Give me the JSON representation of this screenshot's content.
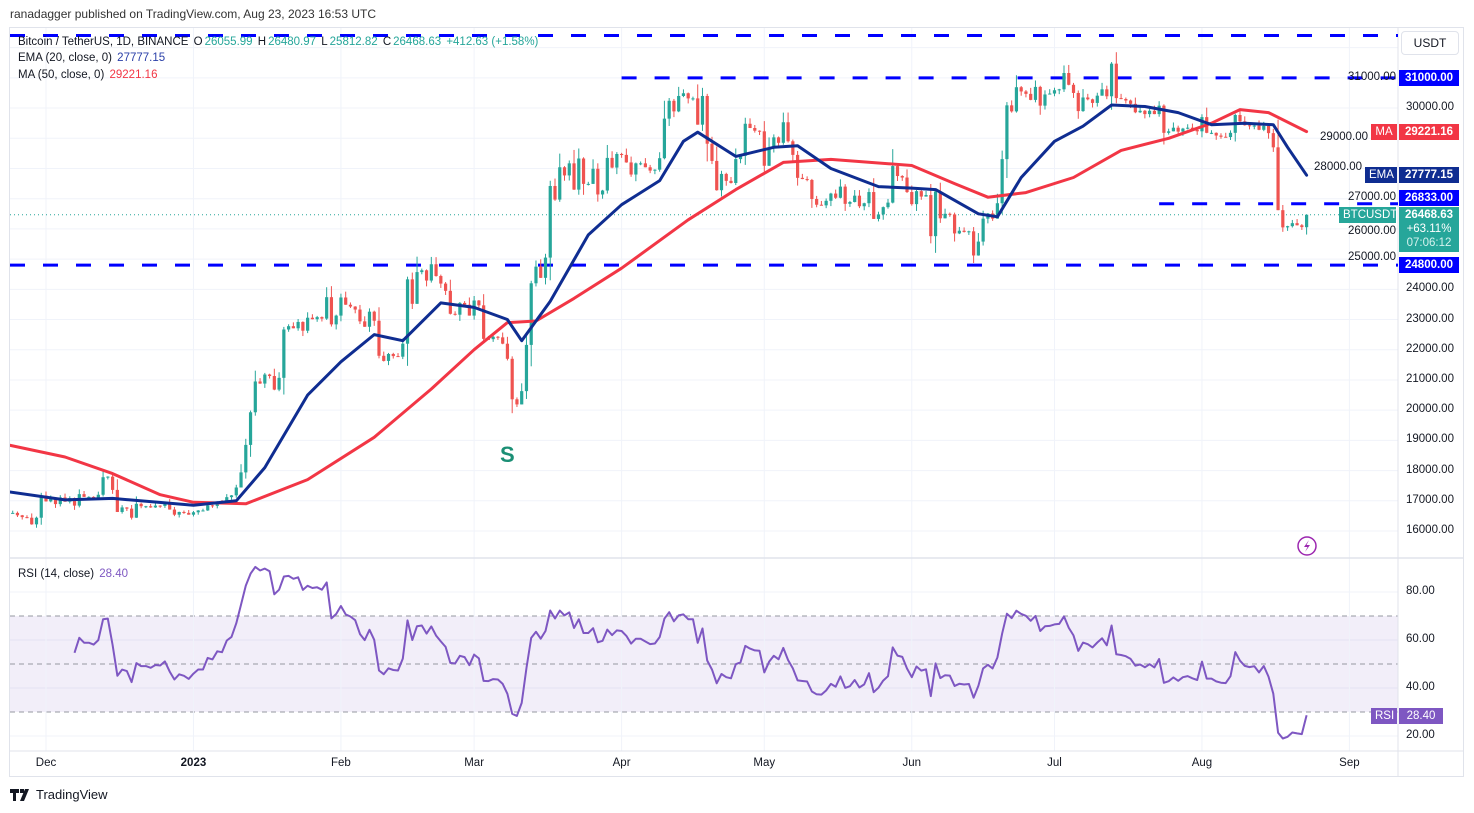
{
  "published": "ranadagger published on TradingView.com, Aug 23, 2023 16:53 UTC",
  "legend": {
    "symbol": "Bitcoin / TetherUS, 1D, BINANCE",
    "open_label": "O",
    "open": "26055.99",
    "high_label": "H",
    "high": "26480.97",
    "low_label": "L",
    "low": "25812.82",
    "close_label": "C",
    "close": "26468.63",
    "change": "+412.63 (+1.58%)",
    "ema_label": "EMA (20, close, 0)",
    "ema_value": "27777.15",
    "ma_label": "MA (50, close, 0)",
    "ma_value": "29221.16",
    "rsi_label": "RSI (14, close)",
    "rsi_value": "28.40"
  },
  "currency_button": "USDT",
  "price_axis_ticks": [
    "31000.00",
    "30000.00",
    "29000.00",
    "28000.00",
    "27000.00",
    "26000.00",
    "25000.00",
    "24000.00",
    "23000.00",
    "22000.00",
    "21000.00",
    "20000.00",
    "19000.00",
    "18000.00",
    "17000.00",
    "16000.00"
  ],
  "rsi_axis_ticks": [
    "80.00",
    "60.00",
    "40.00",
    "20.00"
  ],
  "time_axis_ticks": [
    {
      "label": "Dec",
      "date": "2022-12-01"
    },
    {
      "label": "2023",
      "date": "2023-01-01",
      "bold": true
    },
    {
      "label": "Feb",
      "date": "2023-02-01"
    },
    {
      "label": "Mar",
      "date": "2023-03-01"
    },
    {
      "label": "Apr",
      "date": "2023-04-01"
    },
    {
      "label": "May",
      "date": "2023-05-01"
    },
    {
      "label": "Jun",
      "date": "2023-06-01"
    },
    {
      "label": "Jul",
      "date": "2023-07-01"
    },
    {
      "label": "Aug",
      "date": "2023-08-01"
    },
    {
      "label": "Sep",
      "date": "2023-09-01"
    }
  ],
  "tags": {
    "level_31000": "31000.00",
    "ma_name": "MA",
    "ma_value": "29221.16",
    "ema_name": "EMA",
    "ema_value": "27777.15",
    "level_26833": "26833.00",
    "symbol": "BTCUSDT",
    "price": "26468.63",
    "change_pct": "+63.11%",
    "countdown": "07:06:12",
    "level_24800": "24800.00",
    "rsi_name": "RSI",
    "rsi_value": "28.40"
  },
  "annotation_s": "S",
  "footer_brand": "TradingView",
  "colors": {
    "up": "#26a69a",
    "down": "#ef5350",
    "ema": "#0f2d91",
    "ma": "#f23645",
    "levels": "#0000ff",
    "rsi": "#7e57c2"
  },
  "chart_data": {
    "type": "candlestick",
    "symbol": "BTCUSDT",
    "timeframe": "1D",
    "y_range": [
      15500,
      32600
    ],
    "grid": true,
    "last_candle": {
      "date": "2023-08-23",
      "open": 26055.99,
      "high": 26480.97,
      "low": 25812.82,
      "close": 26468.63
    },
    "closes_by_month": [
      {
        "month": "2022-11",
        "first_day": 23,
        "closes": [
          16600,
          16600,
          16520,
          16460,
          16440,
          16220,
          16440,
          17170
        ]
      },
      {
        "month": "2022-12",
        "first_day": 1,
        "closes": [
          16980,
          17090,
          16890,
          17110,
          16970,
          17090,
          16840,
          17220,
          17130,
          17130,
          17100,
          17200,
          17780,
          17800,
          17360,
          16630,
          16780,
          16740,
          16440,
          16900,
          16820,
          16820,
          16780,
          16840,
          16830,
          16910,
          16710,
          16540,
          16630,
          16600,
          16540
        ]
      },
      {
        "month": "2023-01",
        "first_day": 1,
        "closes": [
          16620,
          16680,
          16680,
          16850,
          16830,
          16950,
          16940,
          17120,
          17180,
          17440,
          17940,
          18850,
          19930,
          20950,
          20880,
          21180,
          21130,
          20680,
          21070,
          22670,
          22780,
          22710,
          22920,
          22630,
          23060,
          23010,
          23080,
          23030,
          23740,
          22840,
          23130
        ]
      },
      {
        "month": "2023-02",
        "first_day": 1,
        "closes": [
          23730,
          23490,
          23430,
          23330,
          22940,
          22760,
          23260,
          22960,
          21800,
          21630,
          21860,
          21790,
          21770,
          22200,
          24330,
          23520,
          24570,
          24630,
          24290,
          24830,
          24440,
          24190,
          23950,
          23190,
          23160,
          23550,
          23490,
          23130
        ]
      },
      {
        "month": "2023-03",
        "first_day": 1,
        "closes": [
          23630,
          23470,
          22360,
          22350,
          22430,
          22410,
          22200,
          21700,
          20360,
          20190,
          20630,
          22160,
          24200,
          24750,
          24380,
          25050,
          27420,
          26970,
          28040,
          27770,
          28170,
          27300,
          28330,
          27490,
          27490,
          27990,
          27140,
          27270,
          28350,
          28030,
          28480
        ]
      },
      {
        "month": "2023-04",
        "first_day": 1,
        "closes": [
          28450,
          28200,
          27800,
          28170,
          28170,
          28040,
          27930,
          27960,
          28340,
          29650,
          30240,
          29890,
          30400,
          30490,
          30320,
          30320,
          29450,
          30400,
          28820,
          28250,
          27280,
          27820,
          27590,
          27520,
          28310,
          28420,
          29480,
          29340,
          29250,
          29230
        ]
      },
      {
        "month": "2023-05",
        "first_day": 1,
        "closes": [
          28090,
          28680,
          29030,
          28850,
          29530,
          28900,
          28450,
          27690,
          27650,
          27620,
          26990,
          26800,
          26780,
          26930,
          27170,
          27030,
          27400,
          26830,
          26890,
          27100,
          26750,
          26850,
          27220,
          26330,
          26480,
          26720,
          26870,
          28080,
          27750,
          27700,
          27220
        ]
      },
      {
        "month": "2023-06",
        "first_day": 1,
        "closes": [
          26820,
          27250,
          27070,
          27120,
          25760,
          27240,
          26350,
          26500,
          26480,
          25850,
          25940,
          25900,
          25920,
          25120,
          25580,
          26340,
          26510,
          26340,
          26850,
          28310,
          30090,
          29890,
          30690,
          30550,
          30470,
          30270,
          30700,
          30080,
          30450,
          30480
        ]
      },
      {
        "month": "2023-07",
        "first_day": 1,
        "closes": [
          30590,
          30620,
          31160,
          30770,
          30500,
          29900,
          30350,
          30290,
          30170,
          30410,
          30620,
          30390,
          31470,
          30330,
          30300,
          30250,
          30140,
          29860,
          29910,
          29800,
          29910,
          29800,
          30080,
          29180,
          29230,
          29350,
          29220,
          29320,
          29350,
          29280,
          29230
        ]
      },
      {
        "month": "2023-08",
        "first_day": 1,
        "closes": [
          29700,
          29180,
          29180,
          29090,
          29050,
          29040,
          29180,
          29770,
          29560,
          29430,
          29400,
          29420,
          29280,
          29410,
          29170,
          28700,
          26620,
          26050,
          26090,
          26190,
          26120,
          26060,
          26468.63
        ]
      }
    ],
    "ema20": [
      {
        "date": "2022-11-23",
        "value": 17300
      },
      {
        "date": "2022-12-05",
        "value": 17030
      },
      {
        "date": "2022-12-15",
        "value": 17080
      },
      {
        "date": "2023-01-01",
        "value": 16850
      },
      {
        "date": "2023-01-10",
        "value": 17000
      },
      {
        "date": "2023-01-16",
        "value": 18100
      },
      {
        "date": "2023-01-25",
        "value": 20500
      },
      {
        "date": "2023-02-01",
        "value": 21600
      },
      {
        "date": "2023-02-08",
        "value": 22500
      },
      {
        "date": "2023-02-14",
        "value": 22300
      },
      {
        "date": "2023-02-22",
        "value": 23550
      },
      {
        "date": "2023-03-01",
        "value": 23400
      },
      {
        "date": "2023-03-08",
        "value": 23000
      },
      {
        "date": "2023-03-11",
        "value": 22300
      },
      {
        "date": "2023-03-17",
        "value": 23600
      },
      {
        "date": "2023-03-25",
        "value": 25800
      },
      {
        "date": "2023-04-01",
        "value": 26800
      },
      {
        "date": "2023-04-09",
        "value": 27600
      },
      {
        "date": "2023-04-14",
        "value": 28900
      },
      {
        "date": "2023-04-17",
        "value": 29200
      },
      {
        "date": "2023-04-25",
        "value": 28400
      },
      {
        "date": "2023-05-03",
        "value": 28700
      },
      {
        "date": "2023-05-08",
        "value": 28750
      },
      {
        "date": "2023-05-15",
        "value": 28000
      },
      {
        "date": "2023-05-25",
        "value": 27400
      },
      {
        "date": "2023-06-01",
        "value": 27350
      },
      {
        "date": "2023-06-06",
        "value": 27300
      },
      {
        "date": "2023-06-15",
        "value": 26500
      },
      {
        "date": "2023-06-19",
        "value": 26400
      },
      {
        "date": "2023-06-24",
        "value": 27700
      },
      {
        "date": "2023-07-01",
        "value": 28900
      },
      {
        "date": "2023-07-07",
        "value": 29400
      },
      {
        "date": "2023-07-13",
        "value": 30100
      },
      {
        "date": "2023-07-20",
        "value": 30050
      },
      {
        "date": "2023-07-27",
        "value": 29850
      },
      {
        "date": "2023-08-03",
        "value": 29450
      },
      {
        "date": "2023-08-10",
        "value": 29500
      },
      {
        "date": "2023-08-16",
        "value": 29450
      },
      {
        "date": "2023-08-19",
        "value": 28700
      },
      {
        "date": "2023-08-23",
        "value": 27777.15
      }
    ],
    "ma50": [
      {
        "date": "2022-11-23",
        "value": 18850
      },
      {
        "date": "2022-12-05",
        "value": 18450
      },
      {
        "date": "2022-12-15",
        "value": 17900
      },
      {
        "date": "2022-12-25",
        "value": 17200
      },
      {
        "date": "2023-01-01",
        "value": 16950
      },
      {
        "date": "2023-01-12",
        "value": 16900
      },
      {
        "date": "2023-01-25",
        "value": 17700
      },
      {
        "date": "2023-02-08",
        "value": 19100
      },
      {
        "date": "2023-02-20",
        "value": 20700
      },
      {
        "date": "2023-03-01",
        "value": 22000
      },
      {
        "date": "2023-03-08",
        "value": 22900
      },
      {
        "date": "2023-03-14",
        "value": 22950
      },
      {
        "date": "2023-03-22",
        "value": 23700
      },
      {
        "date": "2023-04-01",
        "value": 24700
      },
      {
        "date": "2023-04-15",
        "value": 26300
      },
      {
        "date": "2023-04-25",
        "value": 27300
      },
      {
        "date": "2023-05-05",
        "value": 28200
      },
      {
        "date": "2023-05-15",
        "value": 28300
      },
      {
        "date": "2023-06-01",
        "value": 28100
      },
      {
        "date": "2023-06-10",
        "value": 27500
      },
      {
        "date": "2023-06-17",
        "value": 27050
      },
      {
        "date": "2023-06-25",
        "value": 27200
      },
      {
        "date": "2023-07-05",
        "value": 27700
      },
      {
        "date": "2023-07-15",
        "value": 28600
      },
      {
        "date": "2023-07-25",
        "value": 29000
      },
      {
        "date": "2023-08-03",
        "value": 29500
      },
      {
        "date": "2023-08-09",
        "value": 29950
      },
      {
        "date": "2023-08-15",
        "value": 29850
      },
      {
        "date": "2023-08-23",
        "value": 29221.16
      }
    ],
    "rsi": {
      "period": 14,
      "upper": 70,
      "middle": 50,
      "lower": 30,
      "y_range": [
        15,
        90
      ],
      "last": 28.4
    },
    "horizontal_levels": [
      {
        "value": 32400,
        "from": "2022-11-23"
      },
      {
        "value": 31000,
        "from": "2023-04-01",
        "label": "31000.00"
      },
      {
        "value": 26833,
        "from": "2023-07-23",
        "label": "26833.00"
      },
      {
        "value": 24800,
        "from": "2022-11-23",
        "label": "24800.00"
      }
    ],
    "annotations": [
      {
        "text": "S",
        "date": "2023-03-08",
        "price": 18800
      }
    ]
  }
}
